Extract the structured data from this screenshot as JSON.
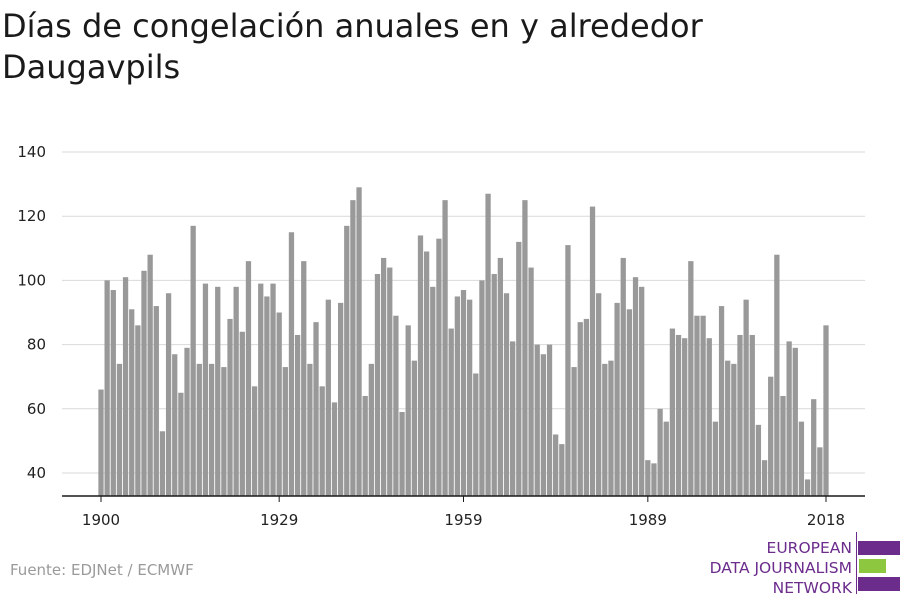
{
  "title": "Días de congelación anuales en y alrededor Daugavpils",
  "source": "Fuente: EDJNet / ECMWF",
  "logo": {
    "line1": "EUROPEAN",
    "line2": "DATA JOURNALISM",
    "line3": "NETWORK"
  },
  "colors": {
    "bar": "#999999",
    "grid": "#d9d9d9",
    "axis": "#1a1a1a",
    "logo_purple": "#6b2c8c",
    "logo_green": "#8dc63f"
  },
  "chart_data": {
    "type": "bar",
    "title": "Días de congelación anuales en y alrededor Daugavpils",
    "xlabel": "",
    "ylabel": "",
    "ylim": [
      33,
      140
    ],
    "xlim": [
      1900,
      2018
    ],
    "yticks": [
      40,
      60,
      80,
      100,
      120,
      140
    ],
    "xticks": [
      1900,
      1929,
      1959,
      1989,
      2018
    ],
    "grid": true,
    "legend": "none",
    "series": [
      {
        "x": [
          1900,
          1901,
          1902,
          1903,
          1904,
          1905,
          1906,
          1907,
          1908,
          1909,
          1910,
          1911,
          1912,
          1913,
          1914,
          1915,
          1916,
          1917,
          1918,
          1919,
          1920,
          1921,
          1922,
          1923,
          1924,
          1925,
          1926,
          1927,
          1928,
          1929,
          1930,
          1931,
          1932,
          1933,
          1934,
          1935,
          1936,
          1937,
          1938,
          1939,
          1940,
          1941,
          1942,
          1943,
          1944,
          1945,
          1946,
          1947,
          1948,
          1949,
          1950,
          1951,
          1952,
          1953,
          1954,
          1955,
          1956,
          1957,
          1958,
          1959,
          1960,
          1961,
          1962,
          1963,
          1964,
          1965,
          1966,
          1967,
          1968,
          1969,
          1970,
          1971,
          1972,
          1973,
          1974,
          1975,
          1976,
          1977,
          1978,
          1979,
          1980,
          1981,
          1982,
          1983,
          1984,
          1985,
          1986,
          1987,
          1988,
          1989,
          1990,
          1991,
          1992,
          1993,
          1994,
          1995,
          1996,
          1997,
          1998,
          1999,
          2000,
          2001,
          2002,
          2003,
          2004,
          2005,
          2006,
          2007,
          2008,
          2009,
          2010,
          2011,
          2012,
          2013,
          2014,
          2015,
          2016,
          2017,
          2018
        ],
        "values": [
          66,
          100,
          97,
          74,
          101,
          91,
          86,
          103,
          108,
          92,
          53,
          96,
          77,
          65,
          79,
          117,
          74,
          99,
          74,
          98,
          73,
          88,
          98,
          84,
          106,
          67,
          99,
          95,
          99,
          90,
          73,
          115,
          83,
          106,
          74,
          87,
          67,
          94,
          62,
          93,
          117,
          125,
          129,
          64,
          74,
          102,
          107,
          104,
          89,
          59,
          86,
          75,
          114,
          109,
          98,
          113,
          125,
          85,
          95,
          97,
          94,
          71,
          100,
          127,
          102,
          107,
          96,
          81,
          112,
          125,
          104,
          80,
          77,
          80,
          52,
          49,
          111,
          73,
          87,
          88,
          123,
          96,
          74,
          75,
          93,
          107,
          91,
          101,
          98,
          44,
          43,
          60,
          56,
          85,
          83,
          82,
          106,
          89,
          89,
          82,
          56,
          92,
          75,
          74,
          83,
          94,
          83,
          55,
          44,
          70,
          108,
          64,
          81,
          79,
          56,
          38,
          63,
          48,
          86
        ]
      }
    ]
  }
}
